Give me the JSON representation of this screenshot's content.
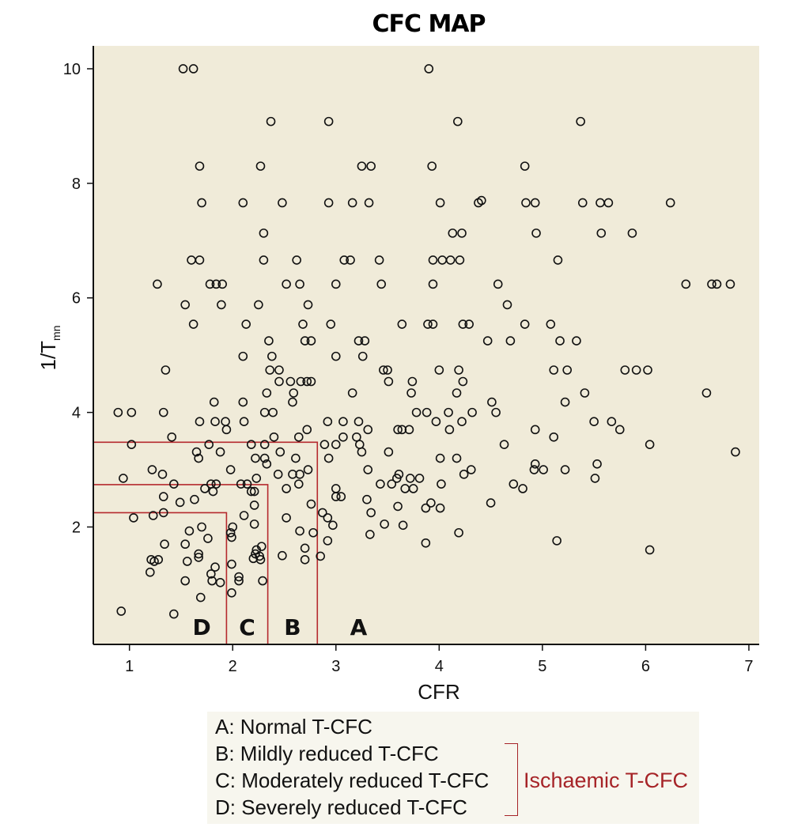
{
  "chart_data": {
    "type": "scatter",
    "title": "CFC MAP",
    "xlabel": "CFR",
    "ylabel_main": "1/T",
    "ylabel_sub": "mn",
    "xlim": [
      0.65,
      7.1
    ],
    "ylim": [
      -0.05,
      10.4
    ],
    "x_ticks": [
      1,
      2,
      3,
      4,
      5,
      6,
      7
    ],
    "y_ticks": [
      2,
      4,
      6,
      8,
      10
    ],
    "grid": false,
    "background_color": "#f0ebd9",
    "boundary_color": "#b52a2e",
    "boundaries": [
      {
        "x": 1.94,
        "y": 2.25
      },
      {
        "x": 2.34,
        "y": 2.74
      },
      {
        "x": 2.82,
        "y": 3.48
      }
    ],
    "region_labels": [
      {
        "text": "D",
        "x": 1.7
      },
      {
        "text": "C",
        "x": 2.14
      },
      {
        "text": "B",
        "x": 2.58
      },
      {
        "text": "A",
        "x": 3.22
      }
    ],
    "points": [
      [
        1.52,
        10.0
      ],
      [
        1.62,
        10.0
      ],
      [
        3.9,
        10.0
      ],
      [
        2.37,
        9.08
      ],
      [
        2.93,
        9.08
      ],
      [
        4.18,
        9.08
      ],
      [
        5.37,
        9.08
      ],
      [
        1.68,
        8.3
      ],
      [
        2.27,
        8.3
      ],
      [
        3.25,
        8.3
      ],
      [
        3.34,
        8.3
      ],
      [
        3.93,
        8.3
      ],
      [
        4.83,
        8.3
      ],
      [
        1.7,
        7.66
      ],
      [
        2.1,
        7.66
      ],
      [
        2.48,
        7.66
      ],
      [
        2.93,
        7.66
      ],
      [
        3.16,
        7.66
      ],
      [
        3.32,
        7.66
      ],
      [
        4.01,
        7.66
      ],
      [
        4.38,
        7.66
      ],
      [
        4.41,
        7.7
      ],
      [
        4.84,
        7.66
      ],
      [
        4.93,
        7.66
      ],
      [
        5.39,
        7.66
      ],
      [
        5.56,
        7.66
      ],
      [
        5.64,
        7.66
      ],
      [
        6.24,
        7.66
      ],
      [
        2.3,
        7.13
      ],
      [
        4.13,
        7.13
      ],
      [
        4.22,
        7.13
      ],
      [
        4.94,
        7.13
      ],
      [
        5.57,
        7.13
      ],
      [
        5.87,
        7.13
      ],
      [
        1.6,
        6.66
      ],
      [
        1.68,
        6.66
      ],
      [
        2.3,
        6.66
      ],
      [
        2.62,
        6.66
      ],
      [
        3.08,
        6.66
      ],
      [
        3.14,
        6.66
      ],
      [
        3.42,
        6.66
      ],
      [
        3.94,
        6.66
      ],
      [
        4.03,
        6.66
      ],
      [
        4.11,
        6.66
      ],
      [
        4.2,
        6.66
      ],
      [
        5.15,
        6.66
      ],
      [
        1.27,
        6.24
      ],
      [
        1.78,
        6.24
      ],
      [
        1.84,
        6.24
      ],
      [
        1.9,
        6.24
      ],
      [
        2.52,
        6.24
      ],
      [
        2.65,
        6.24
      ],
      [
        3.0,
        6.24
      ],
      [
        3.44,
        6.24
      ],
      [
        3.94,
        6.24
      ],
      [
        4.57,
        6.24
      ],
      [
        6.39,
        6.24
      ],
      [
        6.64,
        6.24
      ],
      [
        6.69,
        6.24
      ],
      [
        6.82,
        6.24
      ],
      [
        1.54,
        5.88
      ],
      [
        1.89,
        5.88
      ],
      [
        2.25,
        5.88
      ],
      [
        2.73,
        5.88
      ],
      [
        4.66,
        5.88
      ],
      [
        1.62,
        5.54
      ],
      [
        2.13,
        5.54
      ],
      [
        2.68,
        5.54
      ],
      [
        2.95,
        5.54
      ],
      [
        3.64,
        5.54
      ],
      [
        3.89,
        5.54
      ],
      [
        3.94,
        5.54
      ],
      [
        4.23,
        5.54
      ],
      [
        4.29,
        5.54
      ],
      [
        4.83,
        5.54
      ],
      [
        5.08,
        5.54
      ],
      [
        2.35,
        5.25
      ],
      [
        2.7,
        5.25
      ],
      [
        2.76,
        5.25
      ],
      [
        3.22,
        5.25
      ],
      [
        3.28,
        5.25
      ],
      [
        4.47,
        5.25
      ],
      [
        4.69,
        5.25
      ],
      [
        5.17,
        5.25
      ],
      [
        5.33,
        5.25
      ],
      [
        2.38,
        4.98
      ],
      [
        2.1,
        4.98
      ],
      [
        3.0,
        4.98
      ],
      [
        3.26,
        4.98
      ],
      [
        1.35,
        4.74
      ],
      [
        2.36,
        4.74
      ],
      [
        2.45,
        4.74
      ],
      [
        3.46,
        4.74
      ],
      [
        3.5,
        4.74
      ],
      [
        4.0,
        4.74
      ],
      [
        4.19,
        4.74
      ],
      [
        5.11,
        4.74
      ],
      [
        5.24,
        4.74
      ],
      [
        5.8,
        4.74
      ],
      [
        5.91,
        4.74
      ],
      [
        6.02,
        4.74
      ],
      [
        2.45,
        4.54
      ],
      [
        2.56,
        4.54
      ],
      [
        2.66,
        4.54
      ],
      [
        2.72,
        4.54
      ],
      [
        2.76,
        4.54
      ],
      [
        3.51,
        4.54
      ],
      [
        3.74,
        4.54
      ],
      [
        4.23,
        4.54
      ],
      [
        2.33,
        4.34
      ],
      [
        2.59,
        4.34
      ],
      [
        3.16,
        4.34
      ],
      [
        3.73,
        4.34
      ],
      [
        4.17,
        4.34
      ],
      [
        5.41,
        4.34
      ],
      [
        6.59,
        4.34
      ],
      [
        1.82,
        4.18
      ],
      [
        2.1,
        4.18
      ],
      [
        2.58,
        4.18
      ],
      [
        4.51,
        4.18
      ],
      [
        5.22,
        4.18
      ],
      [
        0.89,
        4.0
      ],
      [
        1.02,
        4.0
      ],
      [
        1.33,
        4.0
      ],
      [
        2.31,
        4.0
      ],
      [
        2.39,
        4.0
      ],
      [
        3.78,
        4.0
      ],
      [
        3.88,
        4.0
      ],
      [
        4.09,
        4.0
      ],
      [
        4.32,
        4.0
      ],
      [
        4.55,
        4.0
      ],
      [
        1.68,
        3.84
      ],
      [
        1.83,
        3.84
      ],
      [
        1.93,
        3.84
      ],
      [
        2.11,
        3.84
      ],
      [
        2.92,
        3.84
      ],
      [
        3.07,
        3.84
      ],
      [
        3.22,
        3.84
      ],
      [
        3.97,
        3.84
      ],
      [
        4.22,
        3.84
      ],
      [
        5.5,
        3.84
      ],
      [
        5.67,
        3.84
      ],
      [
        1.41,
        3.57
      ],
      [
        2.4,
        3.57
      ],
      [
        2.64,
        3.57
      ],
      [
        3.07,
        3.57
      ],
      [
        3.2,
        3.57
      ],
      [
        5.11,
        3.57
      ],
      [
        1.94,
        3.7
      ],
      [
        2.72,
        3.7
      ],
      [
        3.31,
        3.7
      ],
      [
        3.6,
        3.7
      ],
      [
        3.64,
        3.7
      ],
      [
        3.71,
        3.7
      ],
      [
        4.1,
        3.7
      ],
      [
        4.93,
        3.7
      ],
      [
        5.75,
        3.7
      ],
      [
        1.02,
        3.44
      ],
      [
        1.77,
        3.44
      ],
      [
        2.18,
        3.44
      ],
      [
        2.31,
        3.44
      ],
      [
        2.89,
        3.44
      ],
      [
        3.0,
        3.44
      ],
      [
        3.23,
        3.44
      ],
      [
        4.63,
        3.44
      ],
      [
        6.04,
        3.44
      ],
      [
        1.65,
        3.31
      ],
      [
        1.88,
        3.31
      ],
      [
        2.46,
        3.31
      ],
      [
        3.51,
        3.31
      ],
      [
        3.25,
        3.31
      ],
      [
        6.87,
        3.31
      ],
      [
        1.67,
        3.2
      ],
      [
        2.22,
        3.2
      ],
      [
        2.31,
        3.2
      ],
      [
        2.61,
        3.2
      ],
      [
        2.93,
        3.2
      ],
      [
        4.01,
        3.2
      ],
      [
        4.17,
        3.2
      ],
      [
        2.33,
        3.1
      ],
      [
        4.93,
        3.1
      ],
      [
        5.53,
        3.1
      ],
      [
        1.22,
        3.0
      ],
      [
        1.98,
        3.0
      ],
      [
        2.73,
        3.0
      ],
      [
        3.31,
        3.0
      ],
      [
        4.31,
        3.0
      ],
      [
        4.92,
        3.0
      ],
      [
        5.01,
        3.0
      ],
      [
        5.22,
        3.0
      ],
      [
        1.32,
        2.92
      ],
      [
        2.44,
        2.92
      ],
      [
        2.58,
        2.92
      ],
      [
        2.65,
        2.92
      ],
      [
        3.61,
        2.92
      ],
      [
        4.24,
        2.92
      ],
      [
        0.94,
        2.85
      ],
      [
        2.23,
        2.85
      ],
      [
        3.59,
        2.85
      ],
      [
        3.72,
        2.85
      ],
      [
        3.81,
        2.85
      ],
      [
        5.51,
        2.85
      ],
      [
        1.43,
        2.75
      ],
      [
        1.79,
        2.75
      ],
      [
        1.84,
        2.75
      ],
      [
        2.08,
        2.75
      ],
      [
        2.14,
        2.75
      ],
      [
        2.64,
        2.75
      ],
      [
        3.43,
        2.75
      ],
      [
        3.54,
        2.75
      ],
      [
        4.02,
        2.75
      ],
      [
        4.72,
        2.75
      ],
      [
        1.73,
        2.67
      ],
      [
        1.81,
        2.62
      ],
      [
        2.18,
        2.62
      ],
      [
        2.21,
        2.62
      ],
      [
        2.52,
        2.67
      ],
      [
        3.0,
        2.67
      ],
      [
        3.67,
        2.67
      ],
      [
        3.75,
        2.67
      ],
      [
        4.81,
        2.67
      ],
      [
        1.33,
        2.53
      ],
      [
        3.0,
        2.53
      ],
      [
        3.05,
        2.53
      ],
      [
        1.63,
        2.48
      ],
      [
        3.3,
        2.48
      ],
      [
        3.6,
        2.36
      ],
      [
        3.92,
        2.42
      ],
      [
        4.5,
        2.42
      ],
      [
        1.49,
        2.43
      ],
      [
        2.21,
        2.38
      ],
      [
        2.76,
        2.4
      ],
      [
        3.87,
        2.33
      ],
      [
        4.01,
        2.33
      ],
      [
        1.33,
        2.25
      ],
      [
        2.87,
        2.25
      ],
      [
        3.34,
        2.25
      ],
      [
        1.04,
        2.16
      ],
      [
        1.23,
        2.2
      ],
      [
        2.11,
        2.2
      ],
      [
        2.52,
        2.16
      ],
      [
        2.92,
        2.16
      ],
      [
        3.47,
        2.05
      ],
      [
        3.65,
        2.03
      ],
      [
        1.7,
        2.0
      ],
      [
        2.0,
        2.0
      ],
      [
        2.21,
        2.05
      ],
      [
        2.97,
        2.03
      ],
      [
        1.58,
        1.93
      ],
      [
        1.98,
        1.9
      ],
      [
        2.65,
        1.93
      ],
      [
        2.78,
        1.9
      ],
      [
        3.33,
        1.87
      ],
      [
        4.19,
        1.9
      ],
      [
        1.99,
        1.82
      ],
      [
        1.76,
        1.8
      ],
      [
        1.54,
        1.7
      ],
      [
        1.34,
        1.7
      ],
      [
        2.28,
        1.66
      ],
      [
        2.92,
        1.76
      ],
      [
        3.87,
        1.72
      ],
      [
        5.14,
        1.76
      ],
      [
        2.23,
        1.6
      ],
      [
        2.7,
        1.63
      ],
      [
        2.22,
        1.53
      ],
      [
        1.67,
        1.53
      ],
      [
        1.67,
        1.47
      ],
      [
        2.26,
        1.49
      ],
      [
        2.48,
        1.5
      ],
      [
        2.85,
        1.49
      ],
      [
        6.04,
        1.6
      ],
      [
        1.21,
        1.43
      ],
      [
        1.28,
        1.43
      ],
      [
        1.24,
        1.4
      ],
      [
        2.2,
        1.45
      ],
      [
        1.56,
        1.4
      ],
      [
        2.27,
        1.43
      ],
      [
        2.7,
        1.43
      ],
      [
        1.99,
        1.35
      ],
      [
        1.83,
        1.3
      ],
      [
        1.2,
        1.21
      ],
      [
        1.79,
        1.18
      ],
      [
        2.06,
        1.13
      ],
      [
        1.54,
        1.06
      ],
      [
        1.8,
        1.06
      ],
      [
        1.88,
        1.03
      ],
      [
        2.06,
        1.06
      ],
      [
        2.29,
        1.06
      ],
      [
        1.99,
        0.85
      ],
      [
        1.69,
        0.77
      ],
      [
        0.92,
        0.53
      ],
      [
        1.43,
        0.48
      ]
    ]
  },
  "legend": {
    "items": [
      "A: Normal T-CFC",
      "B: Mildly reduced T-CFC",
      "C: Moderately reduced T-CFC",
      "D: Severely reduced T-CFC"
    ],
    "group_label": "Ischaemic T-CFC",
    "group_color": "#a62428"
  }
}
